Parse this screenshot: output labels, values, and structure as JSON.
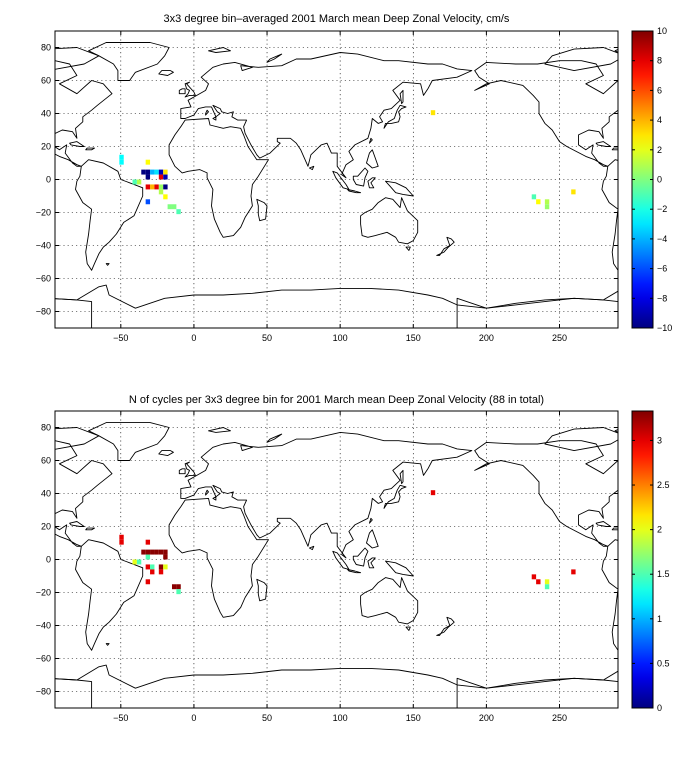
{
  "chart_data": [
    {
      "type": "heatmap",
      "title": "3x3 degree bin–averaged 2001 March mean Deep Zonal Velocity, cm/s",
      "xlim": [
        -95,
        290
      ],
      "ylim": [
        -90,
        90
      ],
      "xticks": [
        -50,
        0,
        50,
        100,
        150,
        200,
        250
      ],
      "yticks": [
        -80,
        -60,
        -40,
        -20,
        0,
        20,
        40,
        60,
        80
      ],
      "grid": true,
      "colorbar": {
        "min": -10,
        "max": 10,
        "ticks": [
          -10,
          -8,
          -6,
          -4,
          -2,
          0,
          2,
          4,
          6,
          8,
          10
        ],
        "colormap": "jet"
      },
      "bins": [
        {
          "lon": -49.5,
          "lat": 13.5,
          "value": -2.5
        },
        {
          "lon": -49.5,
          "lat": 10.5,
          "value": -2.5
        },
        {
          "lon": -40.5,
          "lat": -1.5,
          "value": -1
        },
        {
          "lon": -37.5,
          "lat": -1.5,
          "value": 1
        },
        {
          "lon": -31.5,
          "lat": 10.5,
          "value": 2.5
        },
        {
          "lon": -34.5,
          "lat": 4.5,
          "value": -10
        },
        {
          "lon": -31.5,
          "lat": 4.5,
          "value": -10
        },
        {
          "lon": -28.5,
          "lat": 4.5,
          "value": -4
        },
        {
          "lon": -25.5,
          "lat": 4.5,
          "value": -3
        },
        {
          "lon": -22.5,
          "lat": 4.5,
          "value": -9
        },
        {
          "lon": -19.5,
          "lat": 4.5,
          "value": 3
        },
        {
          "lon": -31.5,
          "lat": 1.5,
          "value": -10
        },
        {
          "lon": -22.5,
          "lat": 1.5,
          "value": 8
        },
        {
          "lon": -19.5,
          "lat": 1.5,
          "value": -9
        },
        {
          "lon": -31.5,
          "lat": -4.5,
          "value": 8
        },
        {
          "lon": -28.5,
          "lat": -4.5,
          "value": 4
        },
        {
          "lon": -25.5,
          "lat": -4.5,
          "value": 8
        },
        {
          "lon": -22.5,
          "lat": -4.5,
          "value": 0.5
        },
        {
          "lon": -19.5,
          "lat": -4.5,
          "value": -10
        },
        {
          "lon": -22.5,
          "lat": -7.5,
          "value": 1
        },
        {
          "lon": -19.5,
          "lat": -10.5,
          "value": 2.5
        },
        {
          "lon": -31.5,
          "lat": -13.5,
          "value": -6
        },
        {
          "lon": -16.5,
          "lat": -16.5,
          "value": 0
        },
        {
          "lon": -13.5,
          "lat": -16.5,
          "value": 0
        },
        {
          "lon": -10.5,
          "lat": -19.5,
          "value": -1
        },
        {
          "lon": 163.5,
          "lat": 40.5,
          "value": 3
        },
        {
          "lon": 232.5,
          "lat": -10.5,
          "value": -1
        },
        {
          "lon": 235.5,
          "lat": -13.5,
          "value": 2.5
        },
        {
          "lon": 241.5,
          "lat": -13.5,
          "value": 1
        },
        {
          "lon": 241.5,
          "lat": -16.5,
          "value": 0.5
        },
        {
          "lon": 259.5,
          "lat": -7.5,
          "value": 3
        }
      ]
    },
    {
      "type": "heatmap",
      "title": "N of cycles per 3x3 degree bin for 2001 March mean Deep Zonal Velocity (88 in total)",
      "xlim": [
        -95,
        290
      ],
      "ylim": [
        -90,
        90
      ],
      "xticks": [
        -50,
        0,
        50,
        100,
        150,
        200,
        250
      ],
      "yticks": [
        -80,
        -60,
        -40,
        -20,
        0,
        20,
        40,
        60,
        80
      ],
      "grid": true,
      "colorbar": {
        "min": 0,
        "max": 3.33,
        "ticks": [
          0,
          0.5,
          1,
          1.5,
          2,
          2.5,
          3
        ],
        "colormap": "jet"
      },
      "bins": [
        {
          "lon": -49.5,
          "lat": 13.5,
          "value": 3
        },
        {
          "lon": -49.5,
          "lat": 10.5,
          "value": 3
        },
        {
          "lon": -40.5,
          "lat": -1.5,
          "value": 2
        },
        {
          "lon": -37.5,
          "lat": -1.5,
          "value": 1.5
        },
        {
          "lon": -31.5,
          "lat": 10.5,
          "value": 3
        },
        {
          "lon": -34.5,
          "lat": 4.5,
          "value": 3.3
        },
        {
          "lon": -31.5,
          "lat": 4.5,
          "value": 3.3
        },
        {
          "lon": -28.5,
          "lat": 4.5,
          "value": 3.3
        },
        {
          "lon": -25.5,
          "lat": 4.5,
          "value": 3.3
        },
        {
          "lon": -22.5,
          "lat": 4.5,
          "value": 3.3
        },
        {
          "lon": -19.5,
          "lat": 4.5,
          "value": 3.3
        },
        {
          "lon": -31.5,
          "lat": 1.5,
          "value": 1.5
        },
        {
          "lon": -19.5,
          "lat": 1.5,
          "value": 3.3
        },
        {
          "lon": -31.5,
          "lat": -4.5,
          "value": 3
        },
        {
          "lon": -28.5,
          "lat": -4.5,
          "value": 1.5
        },
        {
          "lon": -22.5,
          "lat": -4.5,
          "value": 3.3
        },
        {
          "lon": -19.5,
          "lat": -4.5,
          "value": 2
        },
        {
          "lon": -28.5,
          "lat": -7.5,
          "value": 3
        },
        {
          "lon": -22.5,
          "lat": -7.5,
          "value": 3
        },
        {
          "lon": -31.5,
          "lat": -13.5,
          "value": 3
        },
        {
          "lon": -13.5,
          "lat": -16.5,
          "value": 3.3
        },
        {
          "lon": -10.5,
          "lat": -16.5,
          "value": 3.3
        },
        {
          "lon": -10.5,
          "lat": -19.5,
          "value": 1.5
        },
        {
          "lon": 163.5,
          "lat": 40.5,
          "value": 3
        },
        {
          "lon": 232.5,
          "lat": -10.5,
          "value": 3
        },
        {
          "lon": 235.5,
          "lat": -13.5,
          "value": 3
        },
        {
          "lon": 241.5,
          "lat": -13.5,
          "value": 2
        },
        {
          "lon": 241.5,
          "lat": -16.5,
          "value": 1.5
        },
        {
          "lon": 259.5,
          "lat": -7.5,
          "value": 3
        }
      ]
    }
  ]
}
